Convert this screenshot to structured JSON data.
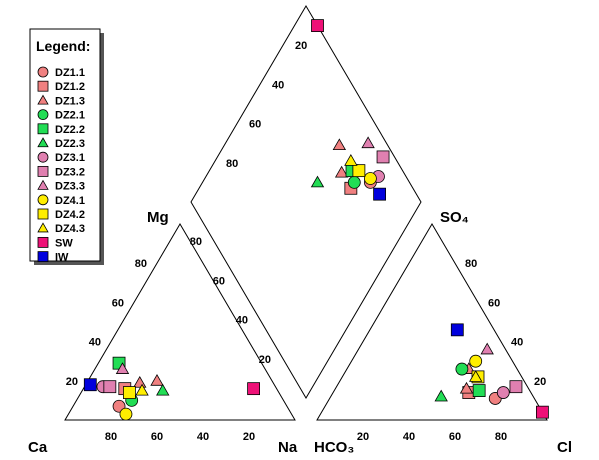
{
  "chart_data": {
    "type": "scatter",
    "diagram": "piper",
    "scale": [
      0,
      100
    ],
    "labels": {
      "cation_left": "Ca",
      "cation_right": "Na",
      "cation_top": "Mg",
      "anion_left": "HCO₃",
      "anion_right": "Cl",
      "anion_top": "SO₄"
    },
    "ticks": {
      "cation_bottom": [
        "80",
        "60",
        "40",
        "20"
      ],
      "cation_side": [
        "20",
        "40",
        "60",
        "80"
      ],
      "anion_bottom": [
        "20",
        "40",
        "60",
        "80"
      ],
      "anion_side": [
        "20",
        "40",
        "60",
        "80"
      ],
      "diamond_left": [
        "20",
        "40",
        "60",
        "80"
      ],
      "diamond_right": [
        "80",
        "60",
        "40",
        "20"
      ]
    },
    "legend": {
      "title": "Legend:",
      "position": "top-left"
    },
    "series": [
      {
        "name": "DZ1.1",
        "shape": "circle",
        "color": "#F08080",
        "points": [
          {
            "ca": 73,
            "mg": 7,
            "cl": 72,
            "so4": 11
          }
        ]
      },
      {
        "name": "DZ1.2",
        "shape": "square",
        "color": "#F08080",
        "points": [
          {
            "ca": 66,
            "mg": 16,
            "cl": 59,
            "so4": 14
          }
        ]
      },
      {
        "name": "DZ1.3",
        "shape": "triangle",
        "color": "#F08080",
        "points": [
          {
            "ca": 50,
            "mg": 20,
            "cl": 53,
            "so4": 26
          },
          {
            "ca": 58,
            "mg": 19,
            "cl": 57,
            "so4": 16
          }
        ]
      },
      {
        "name": "DZ2.1",
        "shape": "circle",
        "color": "#22DD55",
        "points": [
          {
            "ca": 66,
            "mg": 10,
            "cl": 50,
            "so4": 26
          }
        ]
      },
      {
        "name": "DZ2.2",
        "shape": "square",
        "color": "#22DD55",
        "points": [
          {
            "ca": 62,
            "mg": 29,
            "cl": 63,
            "so4": 15
          }
        ]
      },
      {
        "name": "DZ2.3",
        "shape": "triangle",
        "color": "#22DD55",
        "points": [
          {
            "ca": 50,
            "mg": 15,
            "cl": 48,
            "so4": 12
          }
        ]
      },
      {
        "name": "DZ3.1",
        "shape": "circle",
        "color": "#E080B0",
        "points": [
          {
            "ca": 75,
            "mg": 17,
            "cl": 74,
            "so4": 14
          }
        ]
      },
      {
        "name": "DZ3.2",
        "shape": "square",
        "color": "#E080B0",
        "points": [
          {
            "ca": 72,
            "mg": 17,
            "cl": 78,
            "so4": 17
          }
        ]
      },
      {
        "name": "DZ3.3",
        "shape": "triangle",
        "color": "#E080B0",
        "points": [
          {
            "ca": 62,
            "mg": 26,
            "cl": 56,
            "so4": 36
          }
        ]
      },
      {
        "name": "DZ4.1",
        "shape": "circle",
        "color": "#FFEE00",
        "points": [
          {
            "ca": 72,
            "mg": 3,
            "cl": 54,
            "so4": 30
          }
        ]
      },
      {
        "name": "DZ4.2",
        "shape": "square",
        "color": "#FFEE00",
        "points": [
          {
            "ca": 65,
            "mg": 14,
            "cl": 59,
            "so4": 22
          }
        ]
      },
      {
        "name": "DZ4.3",
        "shape": "triangle",
        "color": "#FFEE00",
        "points": [
          {
            "ca": 59,
            "mg": 15,
            "cl": 58,
            "so4": 22
          }
        ]
      },
      {
        "name": "SW",
        "shape": "square",
        "color": "#EE1177",
        "points": [
          {
            "ca": 10,
            "mg": 16,
            "cl": 96,
            "so4": 4
          }
        ]
      },
      {
        "name": "IW",
        "shape": "square",
        "color": "#0000DD",
        "points": [
          {
            "ca": 80,
            "mg": 18,
            "cl": 38,
            "so4": 46
          }
        ]
      }
    ]
  }
}
